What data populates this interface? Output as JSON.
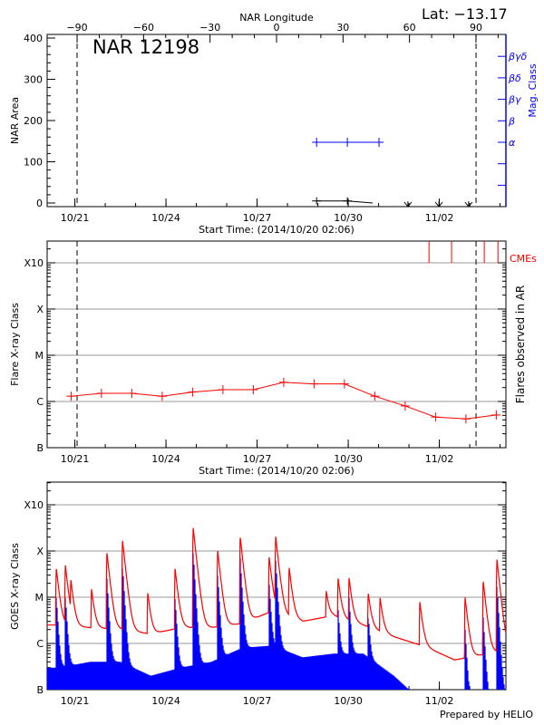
{
  "header": {
    "title": "NAR 12198",
    "lat_label": "Lat: −13.17"
  },
  "footer": {
    "credit": "Prepared by HELIO"
  },
  "colors": {
    "area": "#000000",
    "mag_class": "#0000ff",
    "flares": "#ff0000",
    "cmes": "#ff0000",
    "goes_long": "#ff0000",
    "goes_short": "#0000ff",
    "grid": "#999999"
  },
  "chart_data": [
    {
      "type": "line",
      "title": "NAR 12198",
      "top_axis_label": "NAR Longitude",
      "ylabel": "NAR Area",
      "y2label": "Mag. Class",
      "xlabel": "Start Time: (2014/10/20 02:06)",
      "xlim": [
        "2014-10-20T02:06",
        "2014-11-04T04:30"
      ],
      "ylim": [
        -9,
        409
      ],
      "yticks": [
        "0",
        "100",
        "200",
        "300",
        "400"
      ],
      "xticks": [
        "10/21",
        "10/24",
        "10/27",
        "10/30",
        "11/02"
      ],
      "lon_ticks": [
        "-90",
        "-60",
        "-30",
        "0",
        "30",
        "60",
        "90"
      ],
      "mag_classes": [
        "α",
        "β",
        "βγ",
        "βδ",
        "βγδ"
      ],
      "limb_crossings": [
        "2014-10-21T01:45",
        "2014-11-03T05:00"
      ],
      "area": {
        "x": [
          "2014-10-28T23:00",
          "2014-10-29T23:20",
          "2014-10-30T19:20"
        ],
        "values": [
          5,
          5,
          0
        ]
      },
      "no_data_markers": [
        "2014-10-31T23:10",
        "2014-11-01T23:40",
        "2014-11-02T23:10"
      ],
      "mag_class": {
        "x": [
          "2014-10-28T23:00",
          "2014-10-29T23:20",
          "2014-10-31T00:20"
        ],
        "values": [
          "α",
          "α",
          "α"
        ]
      }
    },
    {
      "type": "line",
      "ylabel": "Flare X-ray Class",
      "y2label": "Flares observed in AR",
      "xlabel": "Start Time: (2014/10/20 02:06)",
      "cme_label": "CMEs",
      "y_scale": "log",
      "grid": true,
      "yticks": [
        "B",
        "C",
        "M",
        "X",
        "X10"
      ],
      "xticks": [
        "10/21",
        "10/24",
        "10/27",
        "10/30",
        "11/02"
      ],
      "limb_crossings": [
        "2014-10-21T01:45",
        "2014-11-03T05:00"
      ],
      "flares": {
        "x": [
          "2014-10-20T21:00",
          "2014-10-21T21:00",
          "2014-10-22T21:00",
          "2014-10-23T21:00",
          "2014-10-24T21:00",
          "2014-10-25T21:00",
          "2014-10-26T21:00",
          "2014-10-27T21:00",
          "2014-10-28T21:00",
          "2014-10-29T21:00",
          "2014-10-30T21:00",
          "2014-10-31T21:00",
          "2014-11-01T21:00",
          "2014-11-02T21:00",
          "2014-11-03T21:00"
        ],
        "values": [
          "C1.3",
          "C1.5",
          "C1.5",
          "C1.3",
          "C1.6",
          "C1.8",
          "C1.8",
          "C2.6",
          "C2.4",
          "C2.4",
          "C1.3",
          "B8.0",
          "B4.6",
          "B4.2",
          "B5.1"
        ]
      },
      "cmes": [
        "2014-11-01T15:50",
        "2014-11-02T09:40",
        "2014-11-03T11:30",
        "2014-11-03T22:20"
      ]
    },
    {
      "type": "line",
      "ylabel": "GOES X-ray Class",
      "y_scale": "log",
      "grid": true,
      "yticks": [
        "B",
        "C",
        "M",
        "X",
        "X10"
      ],
      "xticks": [
        "10/21",
        "10/24",
        "10/27",
        "10/30",
        "11/02"
      ],
      "long_channel": {
        "baseline": {
          "x": [
            "2014-10-20T12:00",
            "2014-10-21T12:00",
            "2014-10-22T12:00",
            "2014-10-23T12:00",
            "2014-10-24T12:00",
            "2014-10-25T12:00",
            "2014-10-26T12:00",
            "2014-10-27T12:00",
            "2014-10-28T12:00",
            "2014-10-29T12:00",
            "2014-10-30T12:00",
            "2014-10-31T12:00",
            "2014-11-01T12:00",
            "2014-11-02T12:00",
            "2014-11-03T12:00",
            "2014-11-04T04:00"
          ],
          "values": [
            "C2.5",
            "C2.2",
            "C2.0",
            "C1.6",
            "C2.2",
            "C2.2",
            "C2.7",
            "C5.0",
            "C3.0",
            "C4.0",
            "C2.5",
            "C1.4",
            "B8.7",
            "B4.4",
            "B5.8",
            "B7.0"
          ]
        },
        "peaks": {
          "x": [
            "2014-10-20T09:20",
            "2014-10-20T16:30",
            "2014-10-20T20:50",
            "2014-10-21T13:10",
            "2014-10-22T01:20",
            "2014-10-22T13:40",
            "2014-10-23T09:35",
            "2014-10-24T07:10",
            "2014-10-24T21:30",
            "2014-10-25T16:50",
            "2014-10-26T10:40",
            "2014-10-27T09:30",
            "2014-10-27T14:40",
            "2014-10-28T01:20",
            "2014-10-29T06:40",
            "2014-10-29T16:00",
            "2014-10-30T00:40",
            "2014-10-30T15:50",
            "2014-10-31T01:10",
            "2014-11-01T08:35",
            "2014-11-02T20:20",
            "2014-11-03T10:40",
            "2014-11-03T21:30"
          ],
          "values": [
            "M4.0",
            "M4.6",
            "M1.8",
            "M1.3",
            "M9.0",
            "X1.7",
            "M1.1",
            "M4.0",
            "X3.2",
            "X1.0",
            "X2.0",
            "M7.0",
            "X2.0",
            "M4.0",
            "M1.0",
            "M2.2",
            "M2.3",
            "M1.0",
            "C8.0",
            "C7.0",
            "C9.5",
            "M2.2",
            "M6.6"
          ]
        }
      },
      "short_channel": {
        "baseline": {
          "x": [
            "2014-10-20T12:00",
            "2014-10-21T12:00",
            "2014-10-22T12:00",
            "2014-10-23T12:00",
            "2014-10-24T12:00",
            "2014-10-25T12:00",
            "2014-10-26T12:00",
            "2014-10-27T12:00",
            "2014-10-28T12:00",
            "2014-10-29T12:00",
            "2014-10-30T12:00",
            "2014-10-31T12:00",
            "2014-11-01T12:00",
            "2014-11-02T12:00",
            "2014-11-03T12:00",
            "2014-11-04T04:00"
          ],
          "values": [
            "B3.0",
            "B4.0",
            "B4.0",
            "B2.0",
            "B3.0",
            "B4.0",
            "B8.0",
            "B9.0",
            "B5.0",
            "B6.0",
            "B6.0",
            "B2.0",
            "A5.0",
            "A5.0",
            "A6.0",
            "A8.0"
          ]
        },
        "peaks": {
          "x": [
            "2014-10-20T09:20",
            "2014-10-20T16:30",
            "2014-10-22T01:20",
            "2014-10-22T13:40",
            "2014-10-24T07:10",
            "2014-10-24T21:30",
            "2014-10-25T16:50",
            "2014-10-26T10:40",
            "2014-10-27T09:30",
            "2014-10-27T14:40",
            "2014-10-29T16:00",
            "2014-10-30T00:40",
            "2014-10-30T15:50",
            "2014-11-02T20:20",
            "2014-11-03T10:40",
            "2014-11-03T21:30"
          ],
          "values": [
            "M1.1",
            "M1.1",
            "M2.6",
            "M5.3",
            "M1.0",
            "X1.0",
            "M3.2",
            "M7.0",
            "M2.0",
            "M6.5",
            "C5.0",
            "C9.0",
            "C4.0",
            "C2.0",
            "C3.7",
            "M1.9"
          ]
        }
      }
    }
  ]
}
